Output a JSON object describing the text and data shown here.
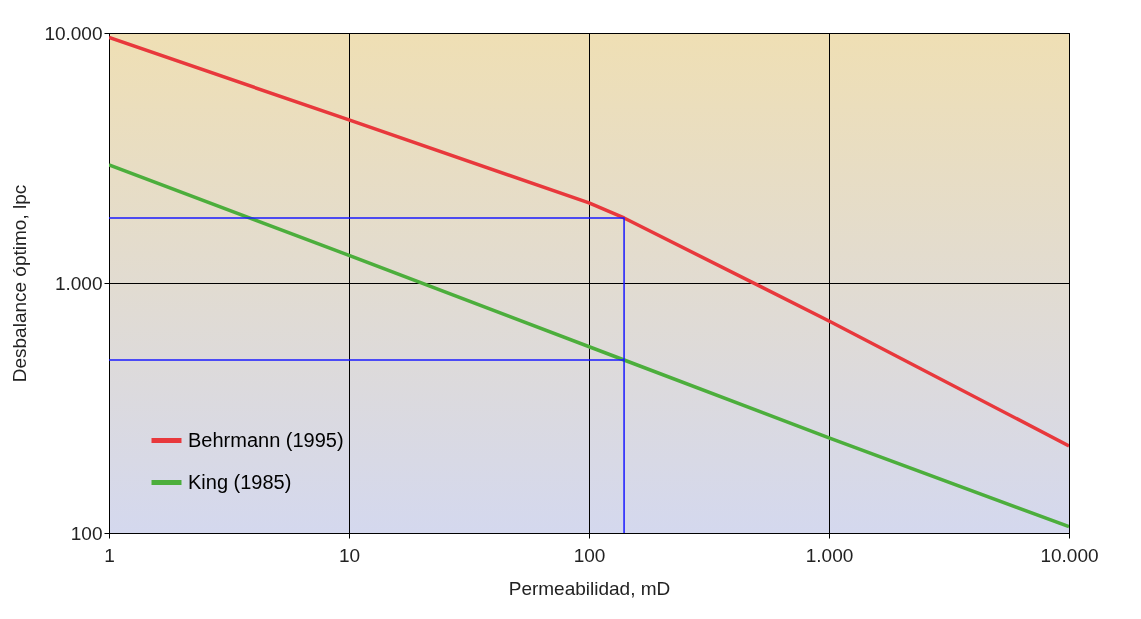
{
  "chart_data": {
    "type": "line",
    "xlabel": "Permeabilidad, mD",
    "ylabel": "Desbalance óptimo, lpc",
    "log": "xy",
    "grid": true,
    "legend": "bottom left",
    "xlim": [
      1,
      10000
    ],
    "ylim": [
      100,
      10000
    ],
    "xticks": [
      1,
      10,
      100,
      {
        "value": 1000,
        "label": "1.000"
      },
      {
        "value": 10000,
        "label": "10.000"
      }
    ],
    "yticks": [
      100,
      {
        "value": 1000,
        "label": "1.000"
      },
      {
        "value": 10000,
        "label": "10.000"
      }
    ],
    "series": [
      {
        "name": "Behrmann (1995)",
        "color": "#e8383c",
        "x": [
          1,
          10,
          100,
          140,
          1000,
          10000
        ],
        "values": [
          9600,
          4490,
          2090,
          1820,
          705,
          223
        ]
      },
      {
        "name": "King (1985)",
        "color": "#4cae3c",
        "x": [
          1,
          10,
          140,
          1000,
          10000
        ],
        "values": [
          2970,
          1290,
          492,
          240,
          106
        ]
      },
      {
        "color": "#1a1aff",
        "x": [
          1,
          140,
          140
        ],
        "values": [
          1820,
          1820,
          100
        ]
      },
      {
        "color": "#1a1aff",
        "x": [
          1,
          140
        ],
        "values": [
          492,
          492
        ]
      }
    ]
  }
}
